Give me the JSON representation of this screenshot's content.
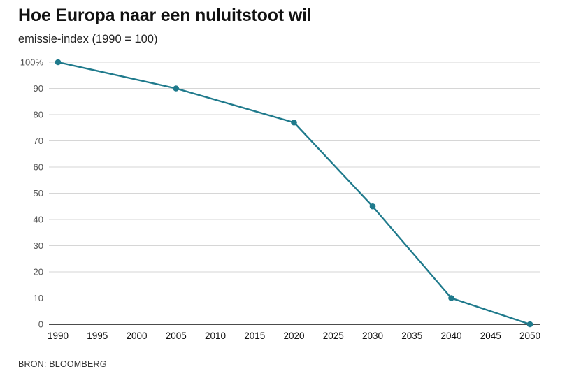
{
  "chart_data": {
    "type": "line",
    "title": "Hoe Europa naar een nuluitstoot wil",
    "subtitle": "emissie-index (1990 = 100)",
    "source": "BRON: BLOOMBERG",
    "xlabel": "",
    "ylabel": "",
    "x_ticks": [
      "1990",
      "1995",
      "2000",
      "2005",
      "2010",
      "2015",
      "2020",
      "2025",
      "2030",
      "2035",
      "2040",
      "2045",
      "2050"
    ],
    "y_ticks": [
      "0",
      "10",
      "20",
      "30",
      "40",
      "50",
      "60",
      "70",
      "80",
      "90",
      "100%"
    ],
    "xlim": [
      1990,
      2050
    ],
    "ylim": [
      0,
      100
    ],
    "grid": true,
    "series": [
      {
        "color": "#1f7a8c",
        "x": [
          1990,
          2005,
          2020,
          2030,
          2040,
          2050
        ],
        "y": [
          100,
          90,
          77,
          45,
          10,
          0
        ]
      }
    ]
  }
}
